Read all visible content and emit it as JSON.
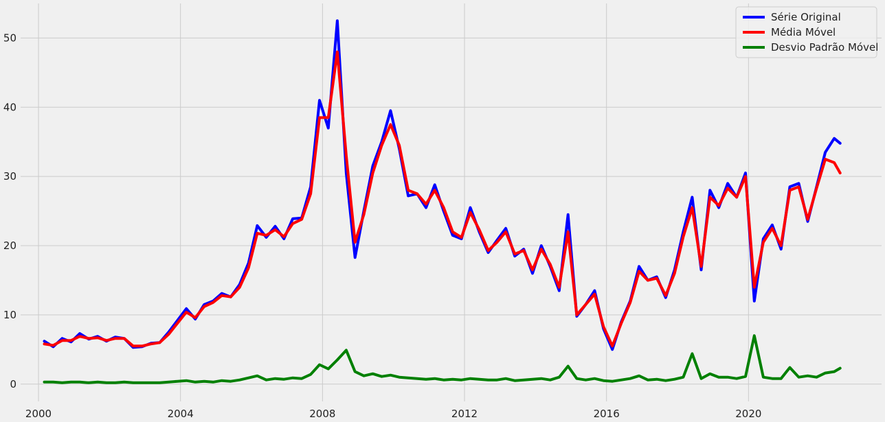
{
  "chart_data": {
    "type": "line",
    "title": "",
    "xlabel": "",
    "ylabel": "",
    "x_type": "date",
    "xlim": [
      "1999-07-01",
      "2023-10-01"
    ],
    "ylim": [
      -2.5,
      55
    ],
    "x_ticks": [
      "2000",
      "2004",
      "2008",
      "2012",
      "2016",
      "2020"
    ],
    "y_ticks": [
      "0",
      "10",
      "20",
      "30",
      "40",
      "50"
    ],
    "grid": true,
    "legend_position": "top-right",
    "x": [
      "2000-03-01",
      "2000-06-01",
      "2000-09-01",
      "2000-12-01",
      "2001-03-01",
      "2001-06-01",
      "2001-09-01",
      "2001-12-01",
      "2002-03-01",
      "2002-06-01",
      "2002-09-01",
      "2002-12-01",
      "2003-03-01",
      "2003-06-01",
      "2003-09-01",
      "2003-12-01",
      "2004-03-01",
      "2004-06-01",
      "2004-09-01",
      "2004-12-01",
      "2005-03-01",
      "2005-06-01",
      "2005-09-01",
      "2005-12-01",
      "2006-03-01",
      "2006-06-01",
      "2006-09-01",
      "2006-12-01",
      "2007-03-01",
      "2007-06-01",
      "2007-09-01",
      "2007-12-01",
      "2008-03-01",
      "2008-06-01",
      "2008-09-01",
      "2008-12-01",
      "2009-03-01",
      "2009-06-01",
      "2009-09-01",
      "2009-12-01",
      "2010-03-01",
      "2010-06-01",
      "2010-09-01",
      "2010-12-01",
      "2011-03-01",
      "2011-06-01",
      "2011-09-01",
      "2011-12-01",
      "2012-03-01",
      "2012-06-01",
      "2012-09-01",
      "2012-12-01",
      "2013-03-01",
      "2013-06-01",
      "2013-09-01",
      "2013-12-01",
      "2014-03-01",
      "2014-06-01",
      "2014-09-01",
      "2014-12-01",
      "2015-03-01",
      "2015-06-01",
      "2015-09-01",
      "2015-12-01",
      "2016-03-01",
      "2016-06-01",
      "2016-09-01",
      "2016-12-01",
      "2017-03-01",
      "2017-06-01",
      "2017-09-01",
      "2017-12-01",
      "2018-03-01",
      "2018-06-01",
      "2018-09-01",
      "2018-12-01",
      "2019-03-01",
      "2019-06-01",
      "2019-09-01",
      "2019-12-01",
      "2020-03-01",
      "2020-06-01",
      "2020-09-01",
      "2020-12-01",
      "2021-03-01",
      "2021-06-01",
      "2021-09-01",
      "2021-12-01",
      "2022-03-01",
      "2022-06-01",
      "2022-08-01"
    ],
    "series": [
      {
        "name": "Série Original",
        "color": "#0000ff",
        "values": [
          6.2,
          5.4,
          6.6,
          6.1,
          7.3,
          6.5,
          6.9,
          6.2,
          6.8,
          6.6,
          5.3,
          5.4,
          5.9,
          6.0,
          7.5,
          9.2,
          10.9,
          9.4,
          11.5,
          12.0,
          13.1,
          12.6,
          14.4,
          17.5,
          22.9,
          21.2,
          22.8,
          21.0,
          23.9,
          24.0,
          28.5,
          41.0,
          37.0,
          52.5,
          30.5,
          18.3,
          25.0,
          31.5,
          35.0,
          39.5,
          34.0,
          27.2,
          27.5,
          25.5,
          28.8,
          25.0,
          21.5,
          21.0,
          25.5,
          22.0,
          19.0,
          20.8,
          22.5,
          18.5,
          19.5,
          16.0,
          20.0,
          17.0,
          13.5,
          24.5,
          9.8,
          11.5,
          13.5,
          8.0,
          5.0,
          9.0,
          12.0,
          17.0,
          15.0,
          15.5,
          12.5,
          16.5,
          22.0,
          27.0,
          16.5,
          28.0,
          25.5,
          29.0,
          27.0,
          30.5,
          12.0,
          21.0,
          23.0,
          19.5,
          28.5,
          29.0,
          23.5,
          28.5,
          33.5,
          35.5,
          34.8
        ]
      },
      {
        "name": "Média Móvel",
        "color": "#ff0000",
        "values": [
          5.8,
          5.6,
          6.3,
          6.3,
          6.9,
          6.6,
          6.7,
          6.3,
          6.6,
          6.6,
          5.5,
          5.5,
          5.8,
          6.0,
          7.2,
          8.8,
          10.4,
          9.6,
          11.2,
          11.8,
          12.8,
          12.6,
          14.0,
          16.8,
          21.8,
          21.5,
          22.3,
          21.3,
          23.2,
          23.8,
          27.5,
          38.5,
          38.5,
          48.0,
          33.0,
          20.5,
          24.5,
          30.5,
          34.5,
          37.5,
          34.5,
          28.0,
          27.5,
          26.0,
          28.0,
          25.5,
          22.0,
          21.2,
          24.8,
          22.3,
          19.3,
          20.5,
          22.0,
          18.8,
          19.3,
          16.5,
          19.5,
          17.3,
          14.0,
          22.0,
          10.0,
          11.5,
          13.0,
          8.3,
          5.5,
          8.8,
          11.8,
          16.3,
          15.0,
          15.3,
          12.8,
          16.0,
          21.3,
          25.5,
          17.0,
          27.0,
          25.8,
          28.3,
          27.0,
          30.0,
          14.0,
          20.5,
          22.5,
          20.0,
          28.0,
          28.5,
          23.8,
          28.3,
          32.5,
          32.0,
          30.5
        ]
      },
      {
        "name": "Desvio Padrão Móvel",
        "color": "#008000",
        "values": [
          0.3,
          0.3,
          0.2,
          0.3,
          0.3,
          0.2,
          0.3,
          0.2,
          0.2,
          0.3,
          0.2,
          0.2,
          0.2,
          0.2,
          0.3,
          0.4,
          0.5,
          0.3,
          0.4,
          0.3,
          0.5,
          0.4,
          0.6,
          0.9,
          1.2,
          0.6,
          0.8,
          0.7,
          0.9,
          0.8,
          1.4,
          2.8,
          2.2,
          3.5,
          4.9,
          1.8,
          1.2,
          1.5,
          1.1,
          1.3,
          1.0,
          0.9,
          0.8,
          0.7,
          0.8,
          0.6,
          0.7,
          0.6,
          0.8,
          0.7,
          0.6,
          0.6,
          0.8,
          0.5,
          0.6,
          0.7,
          0.8,
          0.6,
          1.0,
          2.6,
          0.8,
          0.6,
          0.8,
          0.5,
          0.4,
          0.6,
          0.8,
          1.2,
          0.6,
          0.7,
          0.5,
          0.7,
          1.0,
          4.4,
          0.8,
          1.5,
          1.0,
          1.0,
          0.8,
          1.1,
          7.0,
          1.0,
          0.8,
          0.8,
          2.4,
          1.0,
          1.2,
          1.0,
          1.6,
          1.8,
          2.3
        ]
      }
    ]
  }
}
